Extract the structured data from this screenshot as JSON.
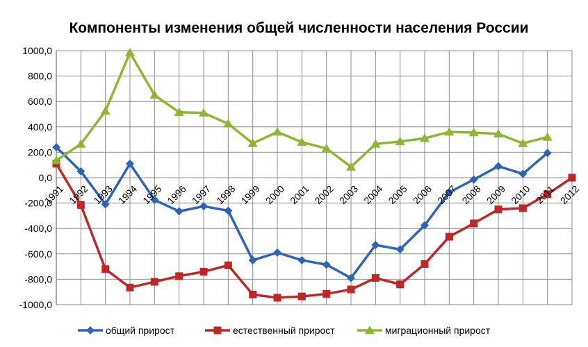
{
  "chart_data": {
    "type": "line",
    "title": "Компоненты изменения общей численности населения России",
    "xlabel": "",
    "ylabel": "",
    "ylim": [
      -1000,
      1000
    ],
    "y_step": 200,
    "y_tick_labels": [
      "1000,0",
      "800,0",
      "600,0",
      "400,0",
      "200,0",
      "0,0",
      "-200,0",
      "-400,0",
      "-600,0",
      "-800,0",
      "-1000,0"
    ],
    "grid": true,
    "legend_position": "bottom",
    "categories": [
      "1991",
      "1992",
      "1993",
      "1994",
      "1995",
      "1996",
      "1997",
      "1998",
      "1999",
      "2000",
      "2001",
      "2002",
      "2003",
      "2004",
      "2005",
      "2006",
      "2007",
      "2008",
      "2009",
      "2010",
      "2011",
      "2012"
    ],
    "series": [
      {
        "name": "общий прирост",
        "color": "#2e64b8",
        "marker": "diamond",
        "values": [
          240,
          50,
          -210,
          110,
          -175,
          -265,
          -225,
          -260,
          -650,
          -590,
          -650,
          -685,
          -790,
          -530,
          -565,
          -375,
          -115,
          -15,
          90,
          30,
          195,
          null
        ]
      },
      {
        "name": "естественный прирост",
        "color": "#bf2626",
        "marker": "square",
        "values": [
          110,
          -215,
          -720,
          -865,
          -820,
          -775,
          -740,
          -690,
          -920,
          -945,
          -935,
          -915,
          -880,
          -790,
          -840,
          -680,
          -465,
          -360,
          -250,
          -240,
          -130,
          0
        ]
      },
      {
        "name": "миграционный прирост",
        "color": "#8db632",
        "marker": "triangle",
        "values": [
          135,
          265,
          525,
          985,
          650,
          515,
          510,
          425,
          270,
          360,
          280,
          230,
          85,
          265,
          285,
          310,
          360,
          355,
          345,
          270,
          320,
          null
        ]
      }
    ]
  }
}
